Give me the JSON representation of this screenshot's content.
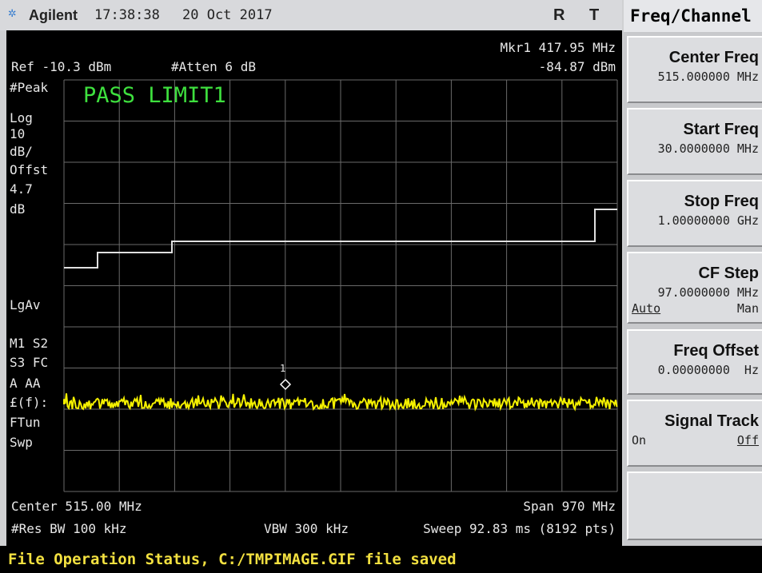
{
  "header": {
    "logo": "Agilent",
    "time": "17:38:38",
    "date": "20 Oct 2017",
    "flag_r": "R",
    "flag_t": "T"
  },
  "screen": {
    "ref": "Ref -10.3 dBm",
    "atten": "#Atten 6 dB",
    "marker_freq": "Mkr1 417.95 MHz",
    "marker_level": "-84.87 dBm",
    "left_labels": [
      "#Peak",
      "Log",
      "10",
      "dB/",
      "Offst",
      "4.7",
      "dB",
      "LgAv",
      "M1 S2",
      "S3 FC",
      "A AA",
      "£(f):",
      "FTun",
      "Swp"
    ],
    "pass": "PASS LIMIT1",
    "marker_label": "1",
    "center": "Center 515.00 MHz",
    "span": "Span 970 MHz",
    "res_bw": "#Res BW 100 kHz",
    "vbw": "VBW 300 kHz",
    "sweep": "Sweep 92.83 ms (8192 pts)"
  },
  "menu": {
    "title": "Freq/Channel",
    "keys": [
      {
        "label": "Center Freq",
        "value": "515.000000 MHz"
      },
      {
        "label": "Start Freq",
        "value": "30.0000000 MHz"
      },
      {
        "label": "Stop Freq",
        "value": "1.00000000 GHz"
      },
      {
        "label": "CF Step",
        "value": "97.0000000 MHz",
        "left": "Auto",
        "right": "Man"
      },
      {
        "label": "Freq Offset",
        "value": "0.00000000  Hz"
      },
      {
        "label": "Signal Track",
        "left": "On",
        "right": "Off"
      }
    ]
  },
  "status": "File Operation Status, C:/TMPIMAGE.GIF file saved"
}
